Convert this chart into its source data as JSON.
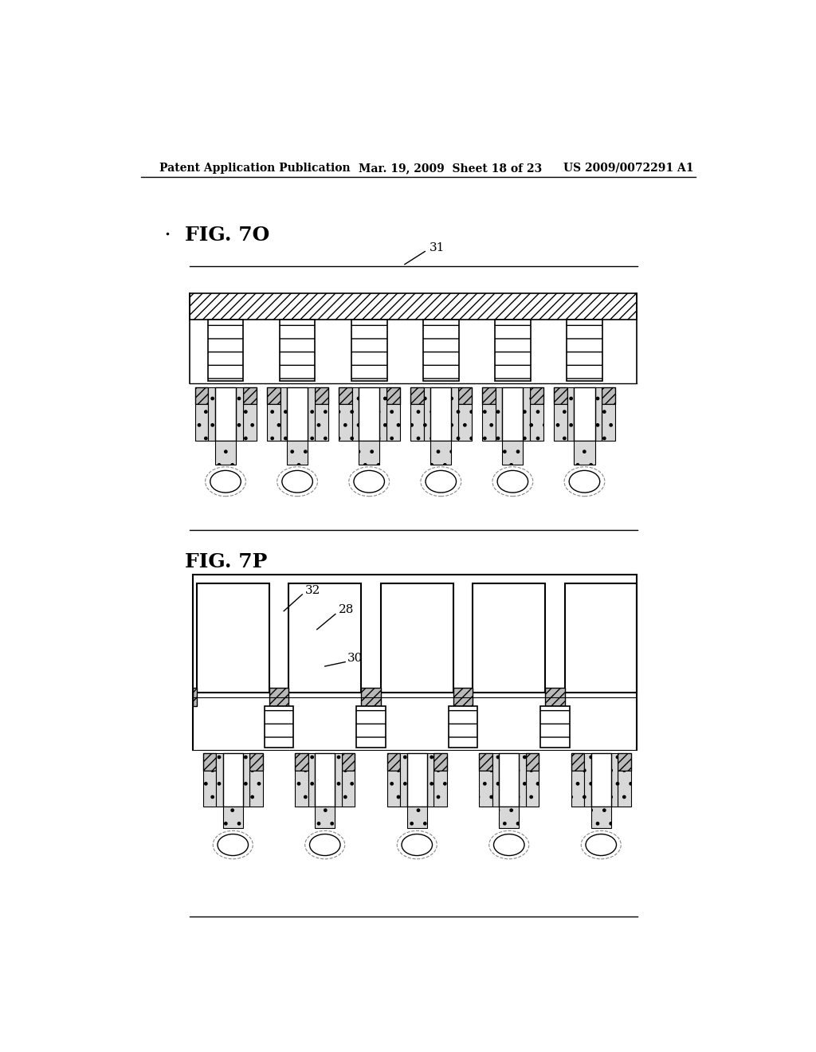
{
  "header_left": "Patent Application Publication",
  "header_mid": "Mar. 19, 2009  Sheet 18 of 23",
  "header_right": "US 2009/0072291 A1",
  "fig1_label": "FIG. 7O",
  "fig2_label": "FIG. 7P",
  "label_31": "31",
  "label_32": "32",
  "label_28": "28",
  "label_30": "30",
  "bg_color": "#ffffff"
}
